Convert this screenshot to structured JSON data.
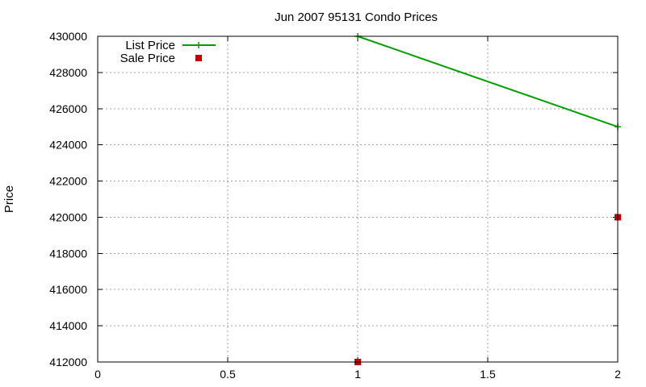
{
  "chart_data": {
    "type": "line",
    "title": "Jun 2007 95131 Condo Prices",
    "xlabel": "",
    "ylabel": "Price",
    "xlim": [
      0,
      2
    ],
    "ylim": [
      412000,
      430000
    ],
    "x_ticks": [
      0,
      0.5,
      1,
      1.5,
      2
    ],
    "x_tick_labels": [
      "0",
      "0.5",
      "1",
      "1.5",
      "2"
    ],
    "y_ticks": [
      412000,
      414000,
      416000,
      418000,
      420000,
      422000,
      424000,
      426000,
      428000,
      430000
    ],
    "y_tick_labels": [
      "412000",
      "414000",
      "416000",
      "418000",
      "420000",
      "422000",
      "424000",
      "426000",
      "428000",
      "430000"
    ],
    "grid": true,
    "legend_position": "top-left",
    "series": [
      {
        "name": "List Price",
        "style": "linespoints",
        "marker": "plus",
        "color": "#00a000",
        "points": [
          {
            "x": 1,
            "y": 430000
          },
          {
            "x": 2,
            "y": 425000
          }
        ]
      },
      {
        "name": "Sale Price",
        "style": "points",
        "marker": "square",
        "color": "#c00000",
        "points": [
          {
            "x": 1,
            "y": 412000
          },
          {
            "x": 2,
            "y": 420000
          }
        ]
      }
    ]
  }
}
